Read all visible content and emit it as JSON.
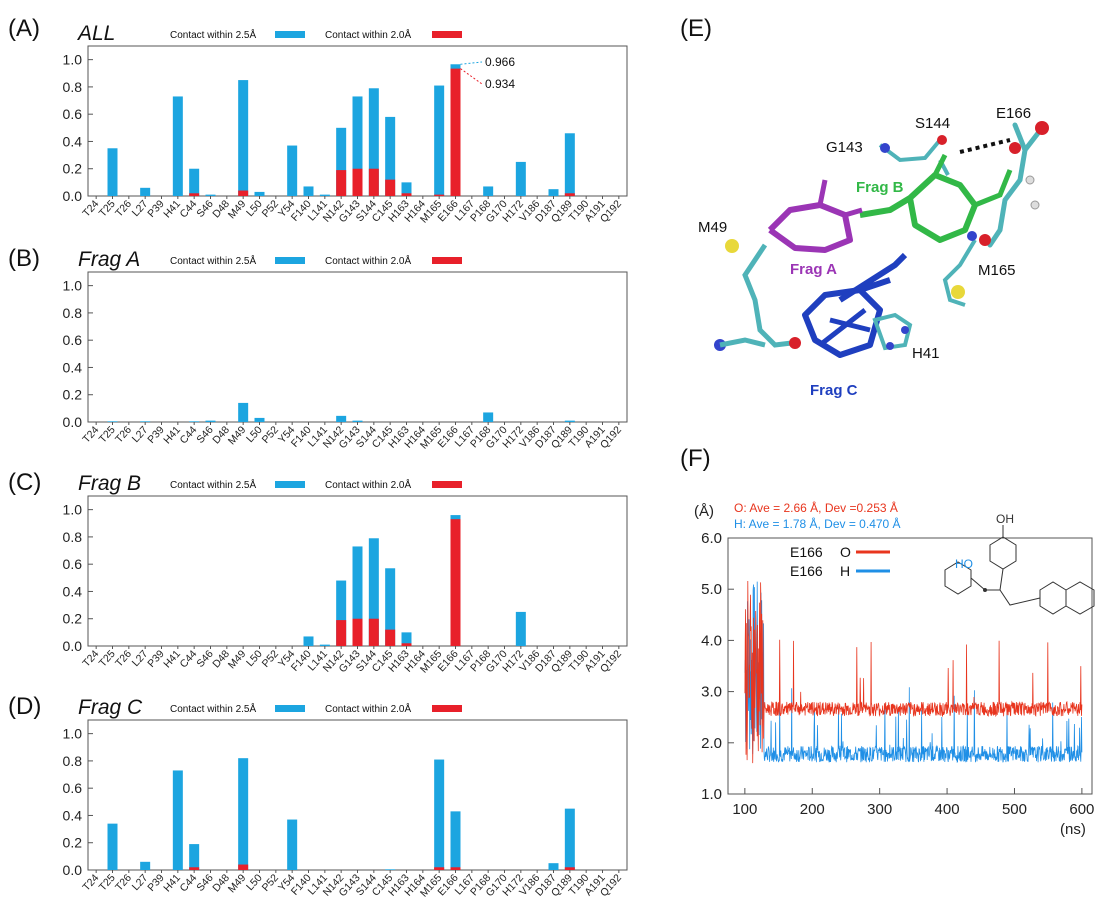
{
  "panel_labels": {
    "a": "(A)",
    "b": "(B)",
    "c": "(C)",
    "d": "(D)",
    "e": "(E)",
    "f": "(F)"
  },
  "colors": {
    "contact25": "#1ca5e0",
    "contact20": "#e8202a",
    "fragA": "#9b35b5",
    "fragB": "#32b847",
    "fragC": "#1f3fbf",
    "lineO": "#e8351e",
    "lineH": "#1f8fe6"
  },
  "legend": {
    "contact25": "Contact within 2.5Å",
    "contact20": "Contact within 2.0Å"
  },
  "chart_data": [
    {
      "type": "bar",
      "title": "ALL",
      "categories": [
        "T24",
        "T25",
        "T26",
        "L27",
        "P39",
        "H41",
        "C44",
        "S46",
        "D48",
        "M49",
        "L50",
        "P52",
        "Y54",
        "F140",
        "L141",
        "N142",
        "G143",
        "S144",
        "C145",
        "H163",
        "H164",
        "M165",
        "E166",
        "L167",
        "P168",
        "G170",
        "H172",
        "V186",
        "D187",
        "Q189",
        "T190",
        "A191",
        "Q192"
      ],
      "yticks": [
        "0.0",
        "0.2",
        "0.4",
        "0.6",
        "0.8",
        "1.0"
      ],
      "ylim": [
        0,
        1.1
      ],
      "series": [
        {
          "name": "Contact within 2.5Å",
          "values": [
            0,
            0.35,
            0,
            0.06,
            0,
            0.73,
            0.2,
            0.01,
            0,
            0.85,
            0.03,
            0,
            0.37,
            0.07,
            0.01,
            0.5,
            0.73,
            0.79,
            0.58,
            0.1,
            0,
            0.81,
            0.966,
            0,
            0.07,
            0,
            0.25,
            0,
            0.05,
            0.46,
            0,
            0,
            0
          ]
        },
        {
          "name": "Contact within 2.0Å",
          "values": [
            0,
            0,
            0,
            0,
            0,
            0,
            0.02,
            0,
            0,
            0.04,
            0,
            0,
            0,
            0,
            0,
            0.19,
            0.2,
            0.2,
            0.12,
            0.02,
            0,
            0.01,
            0.934,
            0,
            0,
            0,
            0,
            0,
            0,
            0.02,
            0,
            0,
            0
          ]
        }
      ],
      "annotations": [
        {
          "text": "0.966",
          "series": "Contact within 2.5Å",
          "category": "E166"
        },
        {
          "text": "0.934",
          "series": "Contact within 2.0Å",
          "category": "E166"
        }
      ]
    },
    {
      "type": "bar",
      "title": "Frag A",
      "categories": [
        "T24",
        "T25",
        "T26",
        "L27",
        "P39",
        "H41",
        "C44",
        "S46",
        "D48",
        "M49",
        "L50",
        "P52",
        "Y54",
        "F140",
        "L141",
        "N142",
        "G143",
        "S144",
        "C145",
        "H163",
        "H164",
        "M165",
        "E166",
        "L167",
        "P168",
        "G170",
        "H172",
        "V186",
        "D187",
        "Q189",
        "T190",
        "A191",
        "Q192"
      ],
      "yticks": [
        "0.0",
        "0.2",
        "0.4",
        "0.6",
        "0.8",
        "1.0"
      ],
      "ylim": [
        0,
        1.1
      ],
      "series": [
        {
          "name": "Contact within 2.5Å",
          "values": [
            0,
            0.005,
            0,
            0.005,
            0,
            0,
            0.005,
            0.01,
            0,
            0.14,
            0.03,
            0,
            0,
            0,
            0,
            0.045,
            0.01,
            0,
            0,
            0,
            0,
            0,
            0,
            0,
            0.07,
            0,
            0,
            0,
            0,
            0.01,
            0,
            0,
            0
          ]
        },
        {
          "name": "Contact within 2.0Å",
          "values": [
            0,
            0,
            0,
            0,
            0,
            0,
            0,
            0,
            0,
            0,
            0,
            0,
            0,
            0,
            0,
            0,
            0,
            0,
            0,
            0,
            0,
            0,
            0,
            0,
            0,
            0,
            0,
            0,
            0,
            0,
            0,
            0,
            0
          ]
        }
      ]
    },
    {
      "type": "bar",
      "title": "Frag B",
      "categories": [
        "T24",
        "T25",
        "T26",
        "L27",
        "P39",
        "H41",
        "C44",
        "S46",
        "D48",
        "M49",
        "L50",
        "P52",
        "Y54",
        "F140",
        "L141",
        "N142",
        "G143",
        "S144",
        "C145",
        "H163",
        "H164",
        "M165",
        "E166",
        "L167",
        "P168",
        "G170",
        "H172",
        "V186",
        "D187",
        "Q189",
        "T190",
        "A191",
        "Q192"
      ],
      "yticks": [
        "0.0",
        "0.2",
        "0.4",
        "0.6",
        "0.8",
        "1.0"
      ],
      "ylim": [
        0,
        1.1
      ],
      "series": [
        {
          "name": "Contact within 2.5Å",
          "values": [
            0,
            0,
            0,
            0,
            0,
            0,
            0,
            0,
            0,
            0,
            0,
            0,
            0,
            0.07,
            0.01,
            0.48,
            0.73,
            0.79,
            0.57,
            0.1,
            0,
            0,
            0.96,
            0,
            0,
            0,
            0.25,
            0,
            0,
            0,
            0,
            0,
            0
          ]
        },
        {
          "name": "Contact within 2.0Å",
          "values": [
            0,
            0,
            0,
            0,
            0,
            0,
            0,
            0,
            0,
            0,
            0,
            0,
            0,
            0,
            0,
            0.19,
            0.2,
            0.2,
            0.12,
            0.02,
            0,
            0,
            0.93,
            0,
            0,
            0,
            0,
            0,
            0,
            0,
            0,
            0,
            0
          ]
        }
      ]
    },
    {
      "type": "bar",
      "title": "Frag C",
      "categories": [
        "T24",
        "T25",
        "T26",
        "L27",
        "P39",
        "H41",
        "C44",
        "S46",
        "D48",
        "M49",
        "L50",
        "P52",
        "Y54",
        "F140",
        "L141",
        "N142",
        "G143",
        "S144",
        "C145",
        "H163",
        "H164",
        "M165",
        "E166",
        "L167",
        "P168",
        "G170",
        "H172",
        "V186",
        "D187",
        "Q189",
        "T190",
        "A191",
        "Q192"
      ],
      "yticks": [
        "0.0",
        "0.2",
        "0.4",
        "0.6",
        "0.8",
        "1.0"
      ],
      "ylim": [
        0,
        1.1
      ],
      "series": [
        {
          "name": "Contact within 2.5Å",
          "values": [
            0,
            0.34,
            0,
            0.06,
            0,
            0.73,
            0.19,
            0,
            0,
            0.82,
            0,
            0,
            0.37,
            0,
            0,
            0,
            0,
            0,
            0.005,
            0,
            0,
            0.81,
            0.43,
            0,
            0,
            0,
            0,
            0,
            0.05,
            0.45,
            0,
            0,
            0
          ]
        },
        {
          "name": "Contact within 2.0Å",
          "values": [
            0,
            0,
            0,
            0,
            0,
            0,
            0.02,
            0,
            0,
            0.04,
            0,
            0,
            0,
            0,
            0,
            0,
            0,
            0,
            0,
            0,
            0,
            0.02,
            0.02,
            0,
            0,
            0,
            0,
            0,
            0,
            0.02,
            0,
            0,
            0
          ]
        }
      ]
    },
    {
      "type": "line",
      "yunit": "(Å)",
      "xunit": "(ns)",
      "xticks": [
        "100",
        "200",
        "300",
        "400",
        "500",
        "600"
      ],
      "yticks": [
        "1.0",
        "2.0",
        "3.0",
        "4.0",
        "5.0",
        "6.0"
      ],
      "xlim": [
        75,
        615
      ],
      "ylim": [
        1.0,
        6.0
      ],
      "stats": {
        "O": "O: Ave = 2.66 Å, Dev  =0.253 Å",
        "H": "H: Ave = 1.78 Å, Dev = 0.470 Å"
      },
      "series": [
        {
          "name": "O",
          "legend_prefix": "E166",
          "mean": 2.66,
          "dev": 0.253,
          "x_start": 100,
          "x_end": 600
        },
        {
          "name": "H",
          "legend_prefix": "E166",
          "mean": 1.78,
          "dev": 0.47,
          "x_start": 100,
          "x_end": 600
        }
      ]
    }
  ],
  "structure": {
    "residues": [
      "G143",
      "S144",
      "E166",
      "M49",
      "M165",
      "H41"
    ],
    "fragments": [
      "Frag A",
      "Frag B",
      "Frag C"
    ]
  },
  "inset_molecule": {
    "labels": [
      "HO",
      "OH"
    ]
  }
}
